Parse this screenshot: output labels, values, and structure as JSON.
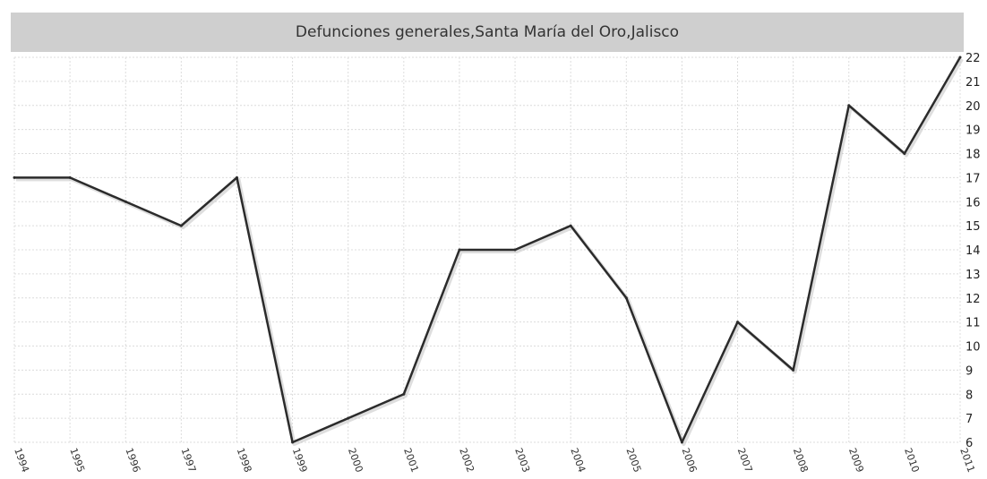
{
  "chart_data": {
    "type": "line",
    "title": "Defunciones generales,Santa María del Oro,Jalisco",
    "xlabel": "",
    "ylabel": "",
    "x": [
      "1994",
      "1995",
      "1996",
      "1997",
      "1998",
      "1999",
      "2000",
      "2001",
      "2002",
      "2003",
      "2004",
      "2005",
      "2006",
      "2007",
      "2008",
      "2009",
      "2010",
      "2011"
    ],
    "series": [
      {
        "values": [
          17,
          17,
          16,
          15,
          17,
          6,
          7,
          8,
          14,
          14,
          15,
          12,
          6,
          11,
          9,
          20,
          18,
          22
        ]
      }
    ],
    "ylim": [
      6,
      22
    ],
    "yticks": [
      6,
      7,
      8,
      9,
      10,
      11,
      12,
      13,
      14,
      15,
      16,
      17,
      18,
      19,
      20,
      21,
      22
    ],
    "grid": true,
    "y_axis_side": "right",
    "colors": {
      "line": "#2b2b2b",
      "grid": "#dcdcdc",
      "title_bg": "#cfcfcf"
    }
  }
}
